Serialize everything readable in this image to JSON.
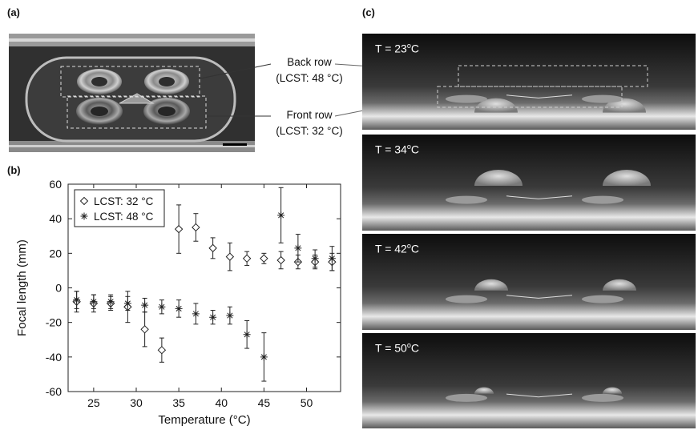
{
  "panels": {
    "a": "(a)",
    "b": "(b)",
    "c": "(c)"
  },
  "callouts": {
    "back_row": "Back row",
    "back_row_lcst": "(LCST: 48 °C)",
    "front_row": "Front row",
    "front_row_lcst": "(LCST: 32 °C)"
  },
  "temperature_frames": [
    {
      "prefix": "T = 23",
      "degree": "o",
      "unit": "C"
    },
    {
      "prefix": "T = 34",
      "degree": "o",
      "unit": "C"
    },
    {
      "prefix": "T = 42",
      "degree": "o",
      "unit": "C"
    },
    {
      "prefix": "T = 50",
      "degree": "o",
      "unit": "C"
    }
  ],
  "chart_data": {
    "type": "scatter",
    "xlabel": "Temperature (°C)",
    "ylabel": "Focal length (mm)",
    "xlim": [
      22,
      54
    ],
    "ylim": [
      -60,
      60
    ],
    "xticks": [
      25,
      30,
      35,
      40,
      45,
      50
    ],
    "yticks": [
      -60,
      -40,
      -20,
      0,
      20,
      40,
      60
    ],
    "legend_position": "top-left",
    "series": [
      {
        "name": "LCST: 32 °C",
        "marker": "diamond",
        "points": [
          {
            "x": 23,
            "y": -8,
            "err": 6
          },
          {
            "x": 25,
            "y": -9,
            "err": 5
          },
          {
            "x": 27,
            "y": -9,
            "err": 4
          },
          {
            "x": 29,
            "y": -11,
            "err": 9
          },
          {
            "x": 31,
            "y": -24,
            "err": 10
          },
          {
            "x": 33,
            "y": -36,
            "err": 7
          },
          {
            "x": 35,
            "y": 34,
            "err": 14
          },
          {
            "x": 37,
            "y": 35,
            "err": 8
          },
          {
            "x": 39,
            "y": 23,
            "err": 6
          },
          {
            "x": 41,
            "y": 18,
            "err": 8
          },
          {
            "x": 43,
            "y": 17,
            "err": 4
          },
          {
            "x": 45,
            "y": 17,
            "err": 3
          },
          {
            "x": 47,
            "y": 16,
            "err": 5
          },
          {
            "x": 49,
            "y": 15,
            "err": 4
          },
          {
            "x": 51,
            "y": 15,
            "err": 4
          },
          {
            "x": 53,
            "y": 15,
            "err": 5
          }
        ]
      },
      {
        "name": "LCST: 48 °C",
        "marker": "asterisk",
        "points": [
          {
            "x": 23,
            "y": -7,
            "err": 5
          },
          {
            "x": 25,
            "y": -8,
            "err": 4
          },
          {
            "x": 27,
            "y": -8,
            "err": 4
          },
          {
            "x": 29,
            "y": -9,
            "err": 4
          },
          {
            "x": 31,
            "y": -10,
            "err": 4
          },
          {
            "x": 33,
            "y": -11,
            "err": 4
          },
          {
            "x": 35,
            "y": -12,
            "err": 5
          },
          {
            "x": 37,
            "y": -15,
            "err": 6
          },
          {
            "x": 39,
            "y": -17,
            "err": 4
          },
          {
            "x": 41,
            "y": -16,
            "err": 5
          },
          {
            "x": 43,
            "y": -27,
            "err": 8
          },
          {
            "x": 45,
            "y": -40,
            "err": 14
          },
          {
            "x": 47,
            "y": 42,
            "err": 16
          },
          {
            "x": 49,
            "y": 23,
            "err": 8
          },
          {
            "x": 51,
            "y": 17,
            "err": 5
          },
          {
            "x": 53,
            "y": 17,
            "err": 7
          }
        ]
      }
    ]
  }
}
